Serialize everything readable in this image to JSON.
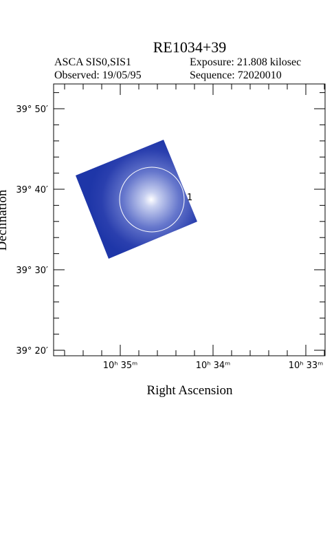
{
  "header": {
    "title": "RE1034+39",
    "instrument": "ASCA SIS0,SIS1",
    "exposure": "Exposure: 21.808 kilosec",
    "observed": "Observed: 19/05/95",
    "sequence": "Sequence: 72020010"
  },
  "axes": {
    "x_label": "Right Ascension",
    "y_label": "Declination",
    "x_tick_labels": [
      "10ʰ 35ᵐ",
      "10ʰ 34ᵐ",
      "10ʰ 33ᵐ"
    ],
    "y_tick_labels": [
      "39° 50′",
      "39° 40′",
      "39° 30′",
      "39° 20′"
    ]
  },
  "sources": [
    {
      "label": "1"
    }
  ]
}
